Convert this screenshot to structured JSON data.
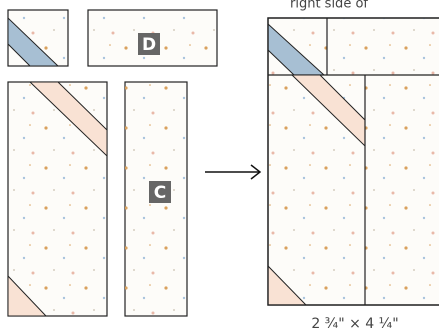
{
  "header": "right side of",
  "pieces": {
    "d": "D",
    "c": "C"
  },
  "caption": "2 ¾\" × 4 ¼\""
}
